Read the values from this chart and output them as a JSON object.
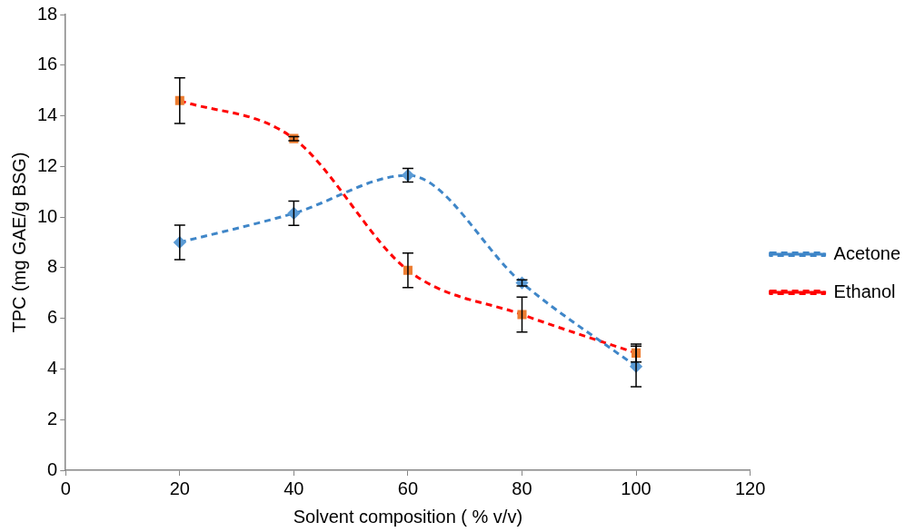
{
  "chart_data": {
    "type": "line",
    "xlabel": "Solvent composition ( % v/v)",
    "ylabel": "TPC (mg GAE/g BSG)",
    "x": [
      20,
      40,
      60,
      80,
      100
    ],
    "xlim": [
      0,
      120
    ],
    "xticks": [
      0,
      20,
      40,
      60,
      80,
      100,
      120
    ],
    "ylim": [
      0,
      18
    ],
    "yticks": [
      0,
      2,
      4,
      6,
      8,
      10,
      12,
      14,
      16,
      18
    ],
    "grid": false,
    "legend": "right",
    "line_style": "dashed",
    "series": [
      {
        "name": "Acetone",
        "color": "#3f86c8",
        "marker": "diamond",
        "values": [
          9.0,
          10.15,
          11.65,
          7.4,
          4.1
        ],
        "errors": [
          0.68,
          0.48,
          0.27,
          0.12,
          0.8
        ]
      },
      {
        "name": "Ethanol",
        "color": "#ff0000",
        "marker": "square",
        "values": [
          14.6,
          13.1,
          7.9,
          6.15,
          4.63
        ],
        "errors": [
          0.9,
          0.08,
          0.68,
          0.69,
          0.35
        ]
      }
    ]
  }
}
